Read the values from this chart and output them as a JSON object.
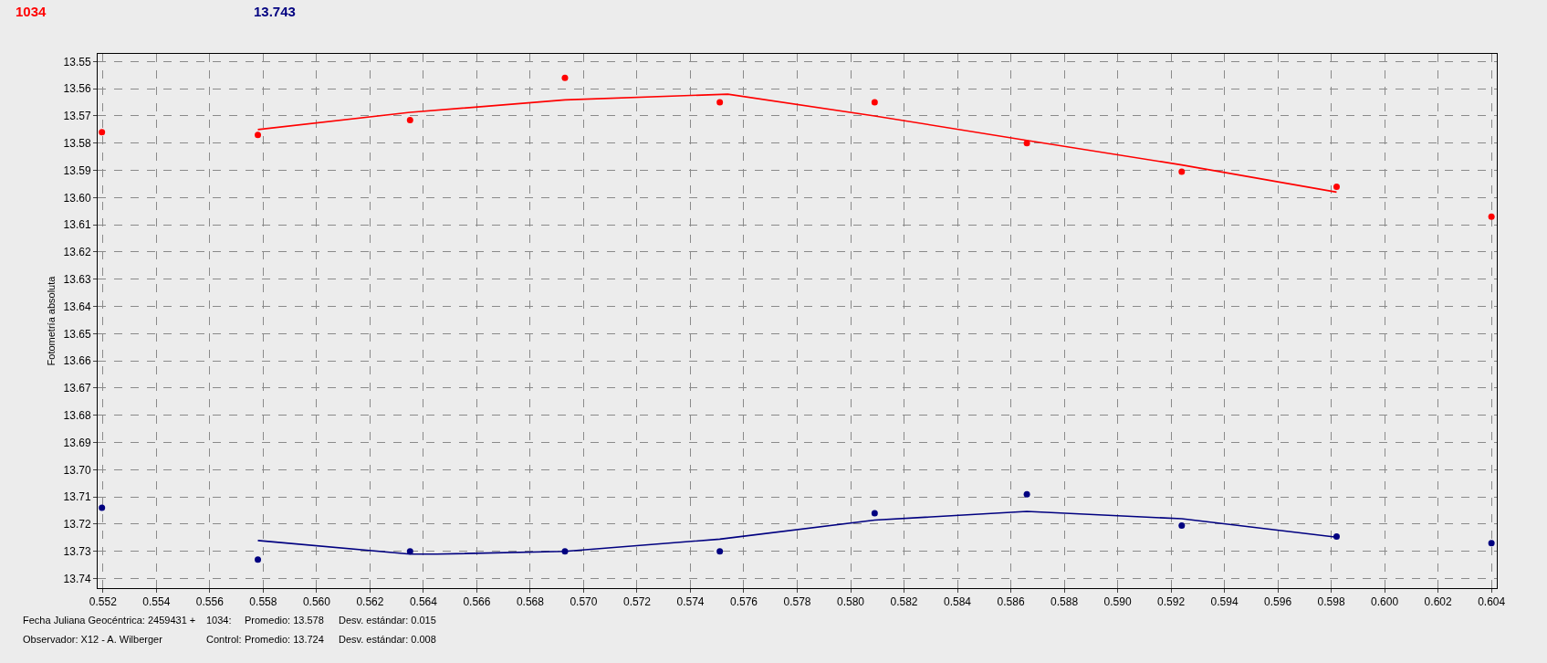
{
  "chart_data": {
    "type": "scatter",
    "ylabel": "Fotometría absoluta",
    "marker": "circle",
    "grid": true,
    "legend": false,
    "xlim": [
      0.5518,
      0.6042
    ],
    "xticks": [
      0.552,
      0.554,
      0.556,
      0.558,
      {
        "value": 0.56,
        "label": "0.560"
      },
      0.562,
      0.564,
      0.566,
      0.568,
      {
        "value": 0.57,
        "label": "0.570"
      },
      0.572,
      0.574,
      0.576,
      0.578,
      {
        "value": 0.58,
        "label": "0.580"
      },
      0.582,
      0.584,
      0.586,
      0.588,
      {
        "value": 0.59,
        "label": "0.590"
      },
      0.592,
      0.594,
      0.596,
      0.598,
      {
        "value": 0.6,
        "label": "0.600"
      },
      0.602,
      0.604
    ],
    "ylim": [
      13.7435,
      13.5472
    ],
    "yticks": [
      13.55,
      13.56,
      13.57,
      13.58,
      13.59,
      {
        "value": 13.6,
        "label": "13.60"
      },
      13.61,
      13.62,
      13.63,
      13.64,
      13.65,
      13.66,
      13.67,
      13.68,
      13.69,
      {
        "value": 13.7,
        "label": "13.70"
      },
      13.71,
      13.72,
      13.73,
      13.74
    ],
    "series": [
      {
        "name": "1034",
        "color": "#ff0000",
        "x": [
          0.55196,
          0.5578,
          0.5635,
          0.5693,
          0.5751,
          0.5809,
          0.5866,
          0.5924,
          0.5982,
          0.604
        ],
        "values": [
          13.576,
          13.577,
          13.5715,
          13.556,
          13.565,
          13.565,
          13.58,
          13.5905,
          13.596,
          13.607
        ]
      },
      {
        "type": "line",
        "marker": "none",
        "color": "#ff0000",
        "x": [
          0.5578,
          0.5635,
          0.5693,
          0.5754,
          0.5809,
          0.5866,
          0.5924,
          0.5982
        ],
        "values": [
          13.575,
          13.5687,
          13.5641,
          13.562,
          13.57,
          13.579,
          13.588,
          13.598
        ]
      },
      {
        "name": "13.743",
        "color": "#000080",
        "x": [
          0.55196,
          0.5578,
          0.5635,
          0.5693,
          0.5751,
          0.5809,
          0.5866,
          0.5924,
          0.5982,
          0.604
        ],
        "values": [
          13.714,
          13.733,
          13.73,
          13.73,
          13.73,
          13.716,
          13.709,
          13.7205,
          13.7245,
          13.727
        ]
      },
      {
        "type": "line",
        "marker": "none",
        "color": "#000080",
        "x": [
          0.5578,
          0.5635,
          0.5645,
          0.5693,
          0.5751,
          0.5809,
          0.5866,
          0.5924,
          0.5982
        ],
        "values": [
          13.726,
          13.731,
          13.731,
          13.73,
          13.7255,
          13.7185,
          13.7153,
          13.718,
          13.7248
        ]
      }
    ],
    "annotations": [
      "Fecha Juliana Geocéntrica: 2459431 +",
      "Observador: X12 - A. Wilberger",
      "1034:",
      "Promedio: 13.578",
      "Desv. estándar: 0.015",
      "Control:",
      "Promedio: 13.724",
      "Desv. estándar: 0.008"
    ]
  }
}
